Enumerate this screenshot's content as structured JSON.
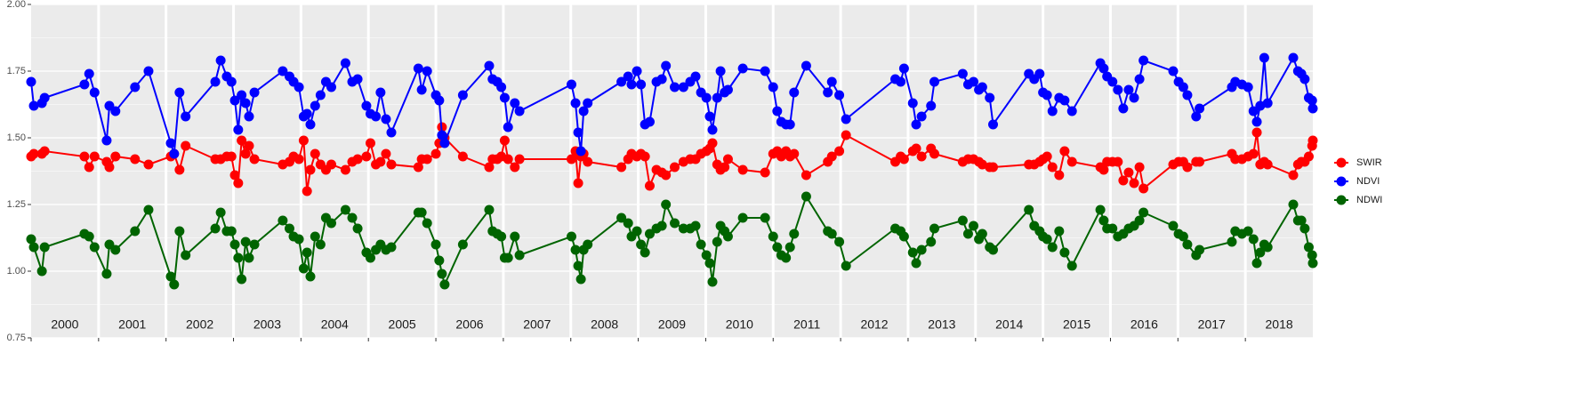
{
  "chart_data": {
    "type": "line",
    "x": [
      2000.0,
      2000.04,
      2000.16,
      2000.2,
      2000.79,
      2000.86,
      2000.94,
      2001.12,
      2001.16,
      2001.25,
      2001.54,
      2001.74,
      2002.07,
      2002.12,
      2002.2,
      2002.29,
      2002.73,
      2002.81,
      2002.9,
      2002.97,
      2003.02,
      2003.07,
      2003.12,
      2003.18,
      2003.23,
      2003.31,
      2003.73,
      2003.83,
      2003.89,
      2003.97,
      2004.04,
      2004.09,
      2004.14,
      2004.21,
      2004.29,
      2004.37,
      2004.45,
      2004.66,
      2004.76,
      2004.84,
      2004.97,
      2005.03,
      2005.11,
      2005.18,
      2005.26,
      2005.34,
      2005.74,
      2005.79,
      2005.87,
      2006.0,
      2006.05,
      2006.09,
      2006.13,
      2006.4,
      2006.79,
      2006.84,
      2006.91,
      2006.97,
      2007.02,
      2007.07,
      2007.17,
      2007.24,
      2008.01,
      2008.07,
      2008.11,
      2008.15,
      2008.19,
      2008.25,
      2008.75,
      2008.85,
      2008.9,
      2008.98,
      2009.04,
      2009.1,
      2009.17,
      2009.27,
      2009.35,
      2009.41,
      2009.54,
      2009.67,
      2009.77,
      2009.85,
      2009.93,
      2010.01,
      2010.06,
      2010.1,
      2010.17,
      2010.22,
      2010.28,
      2010.33,
      2010.55,
      2010.88,
      2011.0,
      2011.06,
      2011.12,
      2011.19,
      2011.25,
      2011.31,
      2011.49,
      2011.81,
      2011.87,
      2011.98,
      2012.08,
      2012.81,
      2012.89,
      2012.94,
      2013.07,
      2013.12,
      2013.2,
      2013.34,
      2013.39,
      2013.81,
      2013.89,
      2013.97,
      2014.05,
      2014.1,
      2014.21,
      2014.26,
      2014.79,
      2014.87,
      2014.95,
      2015.0,
      2015.06,
      2015.14,
      2015.24,
      2015.32,
      2015.43,
      2015.85,
      2015.9,
      2015.95,
      2016.03,
      2016.11,
      2016.19,
      2016.27,
      2016.35,
      2016.43,
      2016.49,
      2016.93,
      2017.01,
      2017.08,
      2017.14,
      2017.27,
      2017.32,
      2017.8,
      2017.85,
      2017.95,
      2018.04,
      2018.12,
      2018.17,
      2018.22,
      2018.28,
      2018.33,
      2018.71,
      2018.78,
      2018.83,
      2018.88,
      2018.94,
      2018.99,
      2019.0
    ],
    "series": [
      {
        "name": "SWIR",
        "color": "#ff0000",
        "values": [
          1.43,
          1.44,
          1.44,
          1.45,
          1.43,
          1.39,
          1.43,
          1.41,
          1.39,
          1.43,
          1.42,
          1.4,
          1.43,
          1.44,
          1.38,
          1.47,
          1.42,
          1.42,
          1.43,
          1.43,
          1.36,
          1.33,
          1.49,
          1.44,
          1.47,
          1.42,
          1.4,
          1.41,
          1.43,
          1.42,
          1.49,
          1.3,
          1.38,
          1.44,
          1.4,
          1.38,
          1.4,
          1.38,
          1.41,
          1.42,
          1.43,
          1.48,
          1.4,
          1.41,
          1.44,
          1.4,
          1.39,
          1.42,
          1.42,
          1.44,
          1.48,
          1.54,
          1.5,
          1.43,
          1.39,
          1.42,
          1.42,
          1.43,
          1.49,
          1.42,
          1.39,
          1.42,
          1.42,
          1.45,
          1.33,
          1.43,
          1.44,
          1.41,
          1.39,
          1.42,
          1.44,
          1.43,
          1.44,
          1.43,
          1.32,
          1.38,
          1.37,
          1.36,
          1.39,
          1.41,
          1.42,
          1.42,
          1.44,
          1.45,
          1.46,
          1.48,
          1.4,
          1.38,
          1.39,
          1.42,
          1.38,
          1.37,
          1.44,
          1.45,
          1.43,
          1.45,
          1.43,
          1.44,
          1.36,
          1.41,
          1.43,
          1.45,
          1.51,
          1.41,
          1.43,
          1.42,
          1.45,
          1.46,
          1.43,
          1.46,
          1.44,
          1.41,
          1.42,
          1.42,
          1.41,
          1.4,
          1.39,
          1.39,
          1.4,
          1.4,
          1.41,
          1.42,
          1.43,
          1.39,
          1.36,
          1.45,
          1.41,
          1.39,
          1.38,
          1.41,
          1.41,
          1.41,
          1.34,
          1.37,
          1.33,
          1.39,
          1.31,
          1.4,
          1.41,
          1.41,
          1.39,
          1.41,
          1.41,
          1.44,
          1.42,
          1.42,
          1.43,
          1.44,
          1.52,
          1.4,
          1.41,
          1.4,
          1.36,
          1.4,
          1.41,
          1.41,
          1.43,
          1.47,
          1.49
        ]
      },
      {
        "name": "NDVI",
        "color": "#0000ff",
        "values": [
          1.71,
          1.62,
          1.63,
          1.65,
          1.7,
          1.74,
          1.67,
          1.49,
          1.62,
          1.6,
          1.69,
          1.75,
          1.48,
          1.44,
          1.67,
          1.58,
          1.71,
          1.79,
          1.73,
          1.71,
          1.64,
          1.53,
          1.66,
          1.63,
          1.58,
          1.67,
          1.75,
          1.73,
          1.71,
          1.69,
          1.58,
          1.59,
          1.55,
          1.62,
          1.66,
          1.71,
          1.69,
          1.78,
          1.71,
          1.72,
          1.62,
          1.59,
          1.58,
          1.67,
          1.57,
          1.52,
          1.76,
          1.68,
          1.75,
          1.66,
          1.64,
          1.51,
          1.48,
          1.66,
          1.77,
          1.72,
          1.71,
          1.69,
          1.65,
          1.54,
          1.63,
          1.6,
          1.7,
          1.63,
          1.52,
          1.45,
          1.6,
          1.63,
          1.71,
          1.73,
          1.7,
          1.75,
          1.7,
          1.55,
          1.56,
          1.71,
          1.72,
          1.77,
          1.69,
          1.69,
          1.71,
          1.73,
          1.67,
          1.65,
          1.58,
          1.53,
          1.65,
          1.75,
          1.67,
          1.68,
          1.76,
          1.75,
          1.69,
          1.6,
          1.56,
          1.55,
          1.55,
          1.67,
          1.77,
          1.67,
          1.71,
          1.66,
          1.57,
          1.72,
          1.71,
          1.76,
          1.63,
          1.55,
          1.58,
          1.62,
          1.71,
          1.74,
          1.7,
          1.71,
          1.68,
          1.69,
          1.65,
          1.55,
          1.74,
          1.72,
          1.74,
          1.67,
          1.66,
          1.6,
          1.65,
          1.64,
          1.6,
          1.78,
          1.76,
          1.73,
          1.71,
          1.68,
          1.61,
          1.68,
          1.65,
          1.72,
          1.79,
          1.75,
          1.71,
          1.69,
          1.66,
          1.58,
          1.61,
          1.69,
          1.71,
          1.7,
          1.69,
          1.6,
          1.56,
          1.62,
          1.8,
          1.63,
          1.8,
          1.75,
          1.74,
          1.72,
          1.65,
          1.64,
          1.61
        ]
      },
      {
        "name": "NDWI",
        "color": "#006400",
        "values": [
          1.12,
          1.09,
          1.0,
          1.09,
          1.14,
          1.13,
          1.09,
          0.99,
          1.1,
          1.08,
          1.15,
          1.23,
          0.98,
          0.95,
          1.15,
          1.06,
          1.16,
          1.22,
          1.15,
          1.15,
          1.1,
          1.05,
          0.97,
          1.11,
          1.05,
          1.1,
          1.19,
          1.16,
          1.13,
          1.12,
          1.01,
          1.07,
          0.98,
          1.13,
          1.1,
          1.2,
          1.18,
          1.23,
          1.2,
          1.16,
          1.07,
          1.05,
          1.08,
          1.1,
          1.08,
          1.09,
          1.22,
          1.22,
          1.18,
          1.1,
          1.04,
          0.99,
          0.95,
          1.1,
          1.23,
          1.15,
          1.14,
          1.13,
          1.05,
          1.05,
          1.13,
          1.06,
          1.13,
          1.08,
          1.02,
          0.97,
          1.08,
          1.1,
          1.2,
          1.18,
          1.13,
          1.15,
          1.1,
          1.07,
          1.14,
          1.16,
          1.17,
          1.25,
          1.18,
          1.16,
          1.16,
          1.17,
          1.1,
          1.06,
          1.03,
          0.96,
          1.11,
          1.17,
          1.15,
          1.13,
          1.2,
          1.2,
          1.13,
          1.09,
          1.06,
          1.05,
          1.09,
          1.14,
          1.28,
          1.15,
          1.14,
          1.11,
          1.02,
          1.16,
          1.15,
          1.13,
          1.07,
          1.03,
          1.08,
          1.11,
          1.16,
          1.19,
          1.14,
          1.17,
          1.12,
          1.14,
          1.09,
          1.08,
          1.23,
          1.17,
          1.15,
          1.13,
          1.12,
          1.09,
          1.15,
          1.07,
          1.02,
          1.23,
          1.19,
          1.16,
          1.16,
          1.13,
          1.14,
          1.16,
          1.17,
          1.19,
          1.22,
          1.17,
          1.14,
          1.13,
          1.1,
          1.06,
          1.08,
          1.11,
          1.15,
          1.14,
          1.15,
          1.12,
          1.03,
          1.07,
          1.1,
          1.09,
          1.25,
          1.19,
          1.19,
          1.16,
          1.09,
          1.06,
          1.03
        ]
      }
    ],
    "xlim": [
      2000,
      2019
    ],
    "xticks": [
      2000,
      2001,
      2002,
      2003,
      2004,
      2005,
      2006,
      2007,
      2008,
      2009,
      2010,
      2011,
      2012,
      2013,
      2014,
      2015,
      2016,
      2017,
      2018
    ],
    "ylim": [
      0.75,
      2.0
    ],
    "yticks": [
      {
        "value": 0.75,
        "label": "0.75"
      },
      {
        "value": 1.0,
        "label": "1.00"
      },
      {
        "value": 1.25,
        "label": "1.25"
      },
      {
        "value": 1.5,
        "label": "1.50"
      },
      {
        "value": 1.75,
        "label": "1.75"
      },
      {
        "value": 2.0,
        "label": "2.00"
      }
    ],
    "grid": true,
    "legend": "right"
  }
}
